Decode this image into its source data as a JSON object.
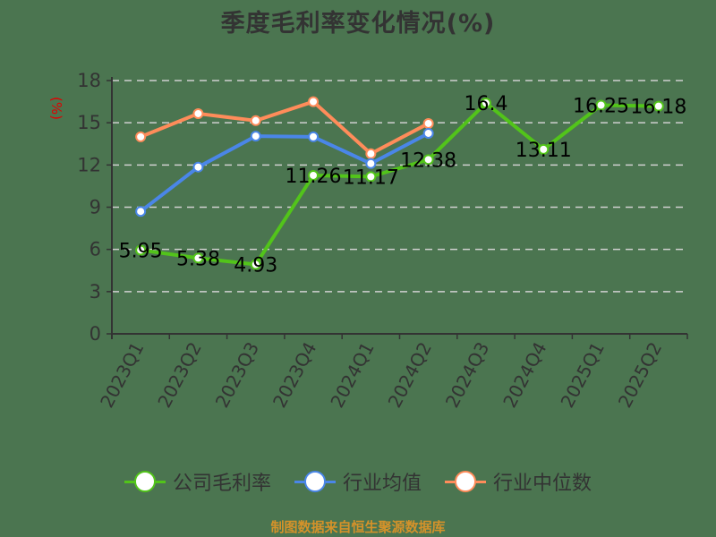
{
  "title": "季度毛利率变化情况(%)",
  "y_unit_label": "(%)",
  "source": "制图数据来自恒生聚源数据库",
  "colors": {
    "background": "#4b7550",
    "company": "#52c41a",
    "industry_avg": "#4a86e8",
    "industry_median": "#ff8c5a",
    "grid": "#d0d0d0",
    "axis": "#333333",
    "source": "#d4922a"
  },
  "legend": [
    {
      "label": "公司毛利率",
      "color": "#52c41a"
    },
    {
      "label": "行业均值",
      "color": "#4a86e8"
    },
    {
      "label": "行业中位数",
      "color": "#ff8c5a"
    }
  ],
  "chart_data": {
    "type": "line",
    "title": "季度毛利率变化情况(%)",
    "xlabel": "",
    "ylabel": "(%)",
    "ylim": [
      0,
      18
    ],
    "yticks": [
      0,
      3,
      6,
      9,
      12,
      15,
      18
    ],
    "grid": true,
    "legend_position": "bottom",
    "categories": [
      "2023Q1",
      "2023Q2",
      "2023Q3",
      "2023Q4",
      "2024Q1",
      "2024Q2",
      "2024Q3",
      "2024Q4",
      "2025Q1",
      "2025Q2"
    ],
    "series": [
      {
        "name": "公司毛利率",
        "color": "#52c41a",
        "labeled": true,
        "values": [
          5.95,
          5.38,
          4.93,
          11.26,
          11.17,
          12.38,
          16.4,
          13.11,
          16.25,
          16.18
        ]
      },
      {
        "name": "行业均值",
        "color": "#4a86e8",
        "labeled": false,
        "values": [
          8.7,
          11.85,
          14.05,
          14.0,
          12.1,
          14.25,
          null,
          null,
          null,
          null
        ]
      },
      {
        "name": "行业中位数",
        "color": "#ff8c5a",
        "labeled": false,
        "values": [
          14.0,
          15.65,
          15.15,
          16.5,
          12.8,
          14.95,
          null,
          null,
          null,
          null
        ]
      }
    ]
  }
}
